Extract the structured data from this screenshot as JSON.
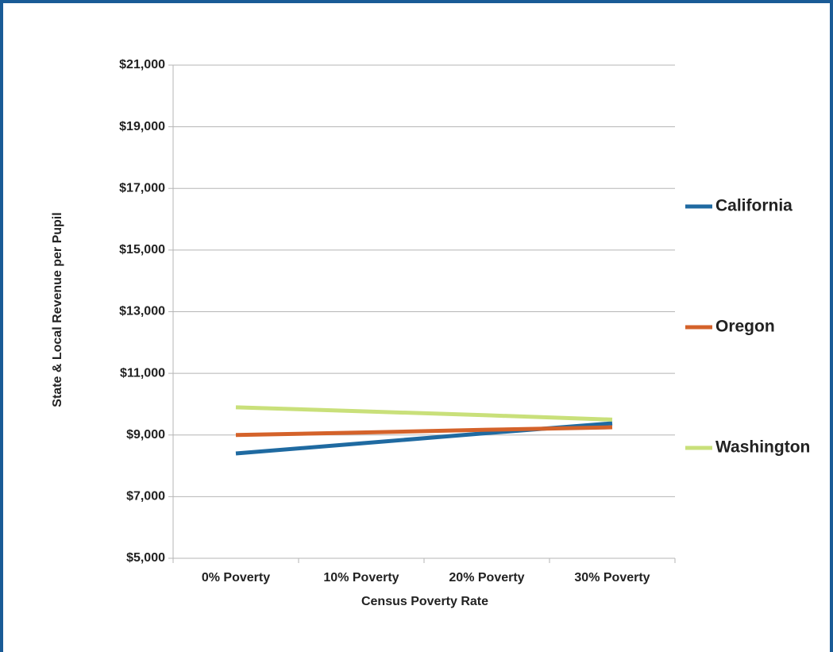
{
  "chart_data": {
    "type": "line",
    "x_label": "Census Poverty Rate",
    "y_label": "State & Local Revenue per Pupil",
    "categories": [
      "0% Poverty",
      "10% Poverty",
      "20% Poverty",
      "30% Poverty"
    ],
    "series": [
      {
        "name": "California",
        "color": "#1f6aa1",
        "values": [
          8400,
          8730,
          9060,
          9380
        ]
      },
      {
        "name": "Oregon",
        "color": "#d4622a",
        "values": [
          9000,
          9080,
          9170,
          9250
        ]
      },
      {
        "name": "Washington",
        "color": "#c9e07a",
        "values": [
          9900,
          9770,
          9640,
          9500
        ]
      }
    ],
    "ylim": [
      5000,
      21000
    ],
    "yticks": [
      {
        "value": 5000,
        "label": "$5,000"
      },
      {
        "value": 7000,
        "label": "$7,000"
      },
      {
        "value": 9000,
        "label": "$9,000"
      },
      {
        "value": 11000,
        "label": "$11,000"
      },
      {
        "value": 13000,
        "label": "$13,000"
      },
      {
        "value": 15000,
        "label": "$15,000"
      },
      {
        "value": 17000,
        "label": "$17,000"
      },
      {
        "value": 19000,
        "label": "$19,000"
      },
      {
        "value": 21000,
        "label": "$21,000"
      }
    ],
    "grid": true,
    "legend": "right"
  }
}
